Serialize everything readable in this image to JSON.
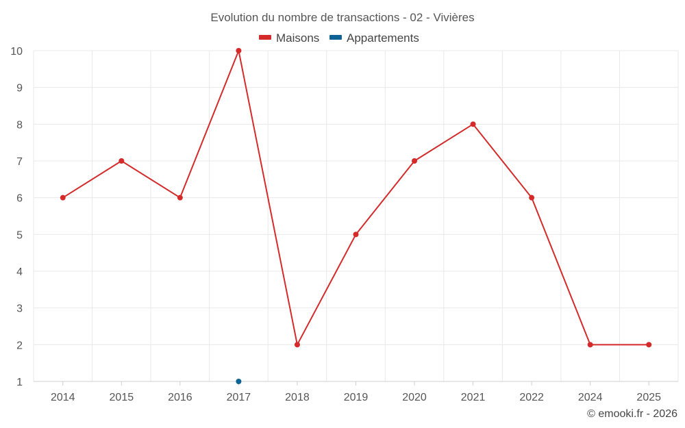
{
  "chart_data": {
    "type": "line",
    "title": "Evolution du nombre de transactions - 02 - Vivières",
    "categories": [
      "2014",
      "2015",
      "2016",
      "2017",
      "2018",
      "2019",
      "2020",
      "2021",
      "2022",
      "2024",
      "2025"
    ],
    "series": [
      {
        "name": "Maisons",
        "color": "#d42a2a",
        "values": [
          6,
          7,
          6,
          10,
          2,
          5,
          7,
          8,
          6,
          2,
          2
        ]
      },
      {
        "name": "Appartements",
        "color": "#0e6396",
        "values": [
          null,
          null,
          null,
          1,
          null,
          null,
          null,
          null,
          null,
          null,
          null
        ]
      }
    ],
    "yticks": [
      1,
      2,
      3,
      4,
      5,
      6,
      7,
      8,
      9,
      10
    ],
    "ylim": [
      1,
      10
    ],
    "grid": true,
    "legend": "top-center",
    "credit": "© emooki.fr - 2026"
  }
}
